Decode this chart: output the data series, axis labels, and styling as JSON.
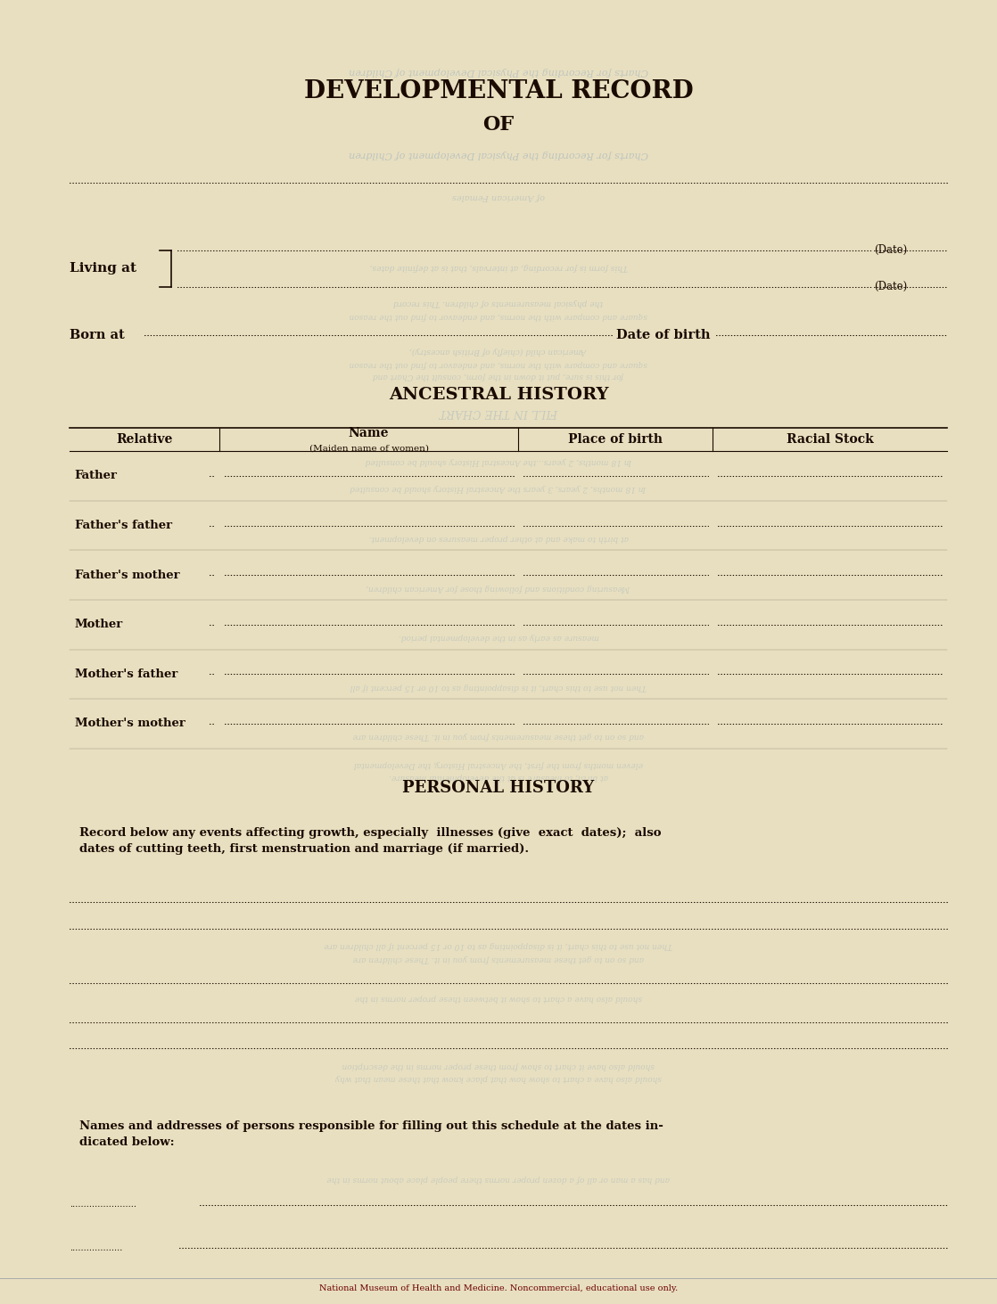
{
  "bg_color": "#e8dfc0",
  "text_color": "#1a0a00",
  "ghost_text_color": "#7799bb",
  "title1": "DEVELOPMENTAL RECORD",
  "title2": "OF",
  "living_at_label": "Living at",
  "ancestral_history_title": "ANCESTRAL HISTORY",
  "table_headers_col0": "Relative",
  "table_headers_col1a": "Name",
  "table_headers_col1b": "(Maiden name of women)",
  "table_headers_col2": "Place of birth",
  "table_headers_col3": "Racial Stock",
  "table_rows": [
    "Father",
    "Father's father",
    "Father's mother",
    "Mother",
    "Mother's father",
    "Mother's mother"
  ],
  "personal_history_title": "PERSONAL HISTORY",
  "personal_history_text": "Record below any events affecting growth, especially  illnesses (give  exact  dates);  also\ndates of cutting teeth, first menstruation and marriage (if married).",
  "names_addresses_text": "Names and addresses of persons responsible for filling out this schedule at the dates in-\ndicated below:",
  "footer_text": "National Museum of Health and Medicine. Noncommercial, educational use only.",
  "col_dividers": [
    0.07,
    0.22,
    0.52,
    0.715,
    0.95
  ]
}
